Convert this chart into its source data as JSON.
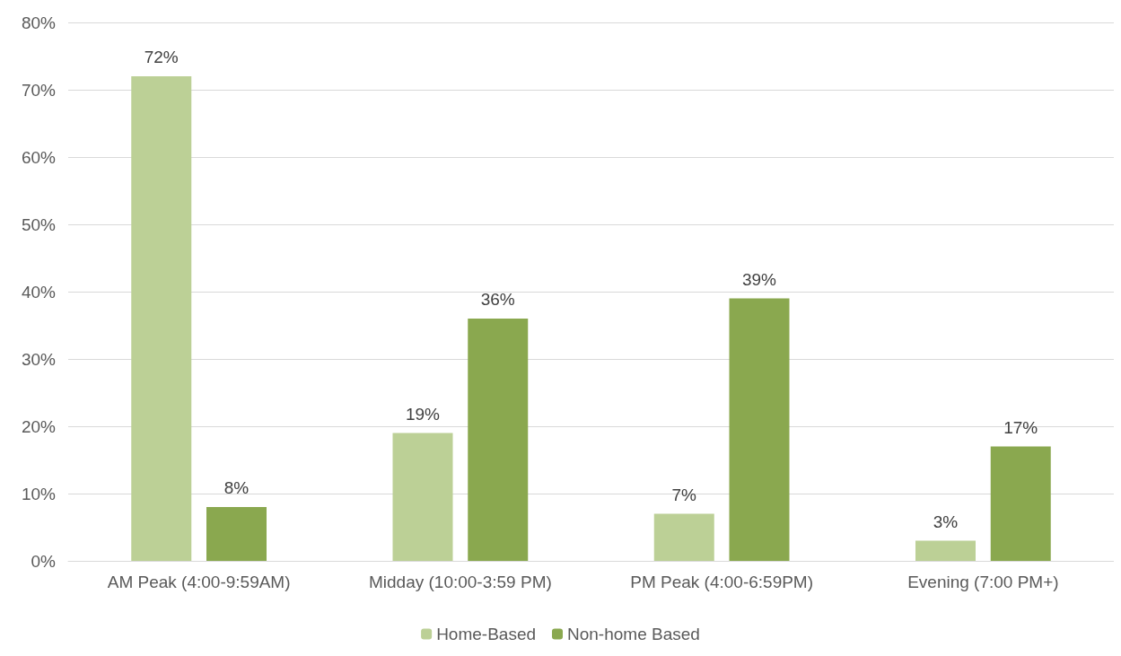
{
  "chart_data": {
    "type": "bar",
    "categories": [
      "AM Peak (4:00-9:59AM)",
      "Midday (10:00-3:59 PM)",
      "PM Peak (4:00-6:59PM)",
      "Evening (7:00 PM+)"
    ],
    "series": [
      {
        "name": "Home-Based",
        "color": "#bcd096",
        "values": [
          72,
          19,
          7,
          3
        ],
        "value_labels": [
          "72%",
          "19%",
          "7%",
          "3%"
        ]
      },
      {
        "name": "Non-home Based",
        "color": "#8aa84f",
        "values": [
          8,
          36,
          39,
          17
        ],
        "value_labels": [
          "8%",
          "36%",
          "39%",
          "17%"
        ]
      }
    ],
    "ylim": [
      0,
      80
    ],
    "yticks": [
      {
        "value": 0,
        "label": "0%"
      },
      {
        "value": 10,
        "label": "10%"
      },
      {
        "value": 20,
        "label": "20%"
      },
      {
        "value": 30,
        "label": "30%"
      },
      {
        "value": 40,
        "label": "40%"
      },
      {
        "value": 50,
        "label": "50%"
      },
      {
        "value": 60,
        "label": "60%"
      },
      {
        "value": 70,
        "label": "70%"
      },
      {
        "value": 80,
        "label": "80%"
      }
    ],
    "grid": "y",
    "legend": "bottom"
  }
}
